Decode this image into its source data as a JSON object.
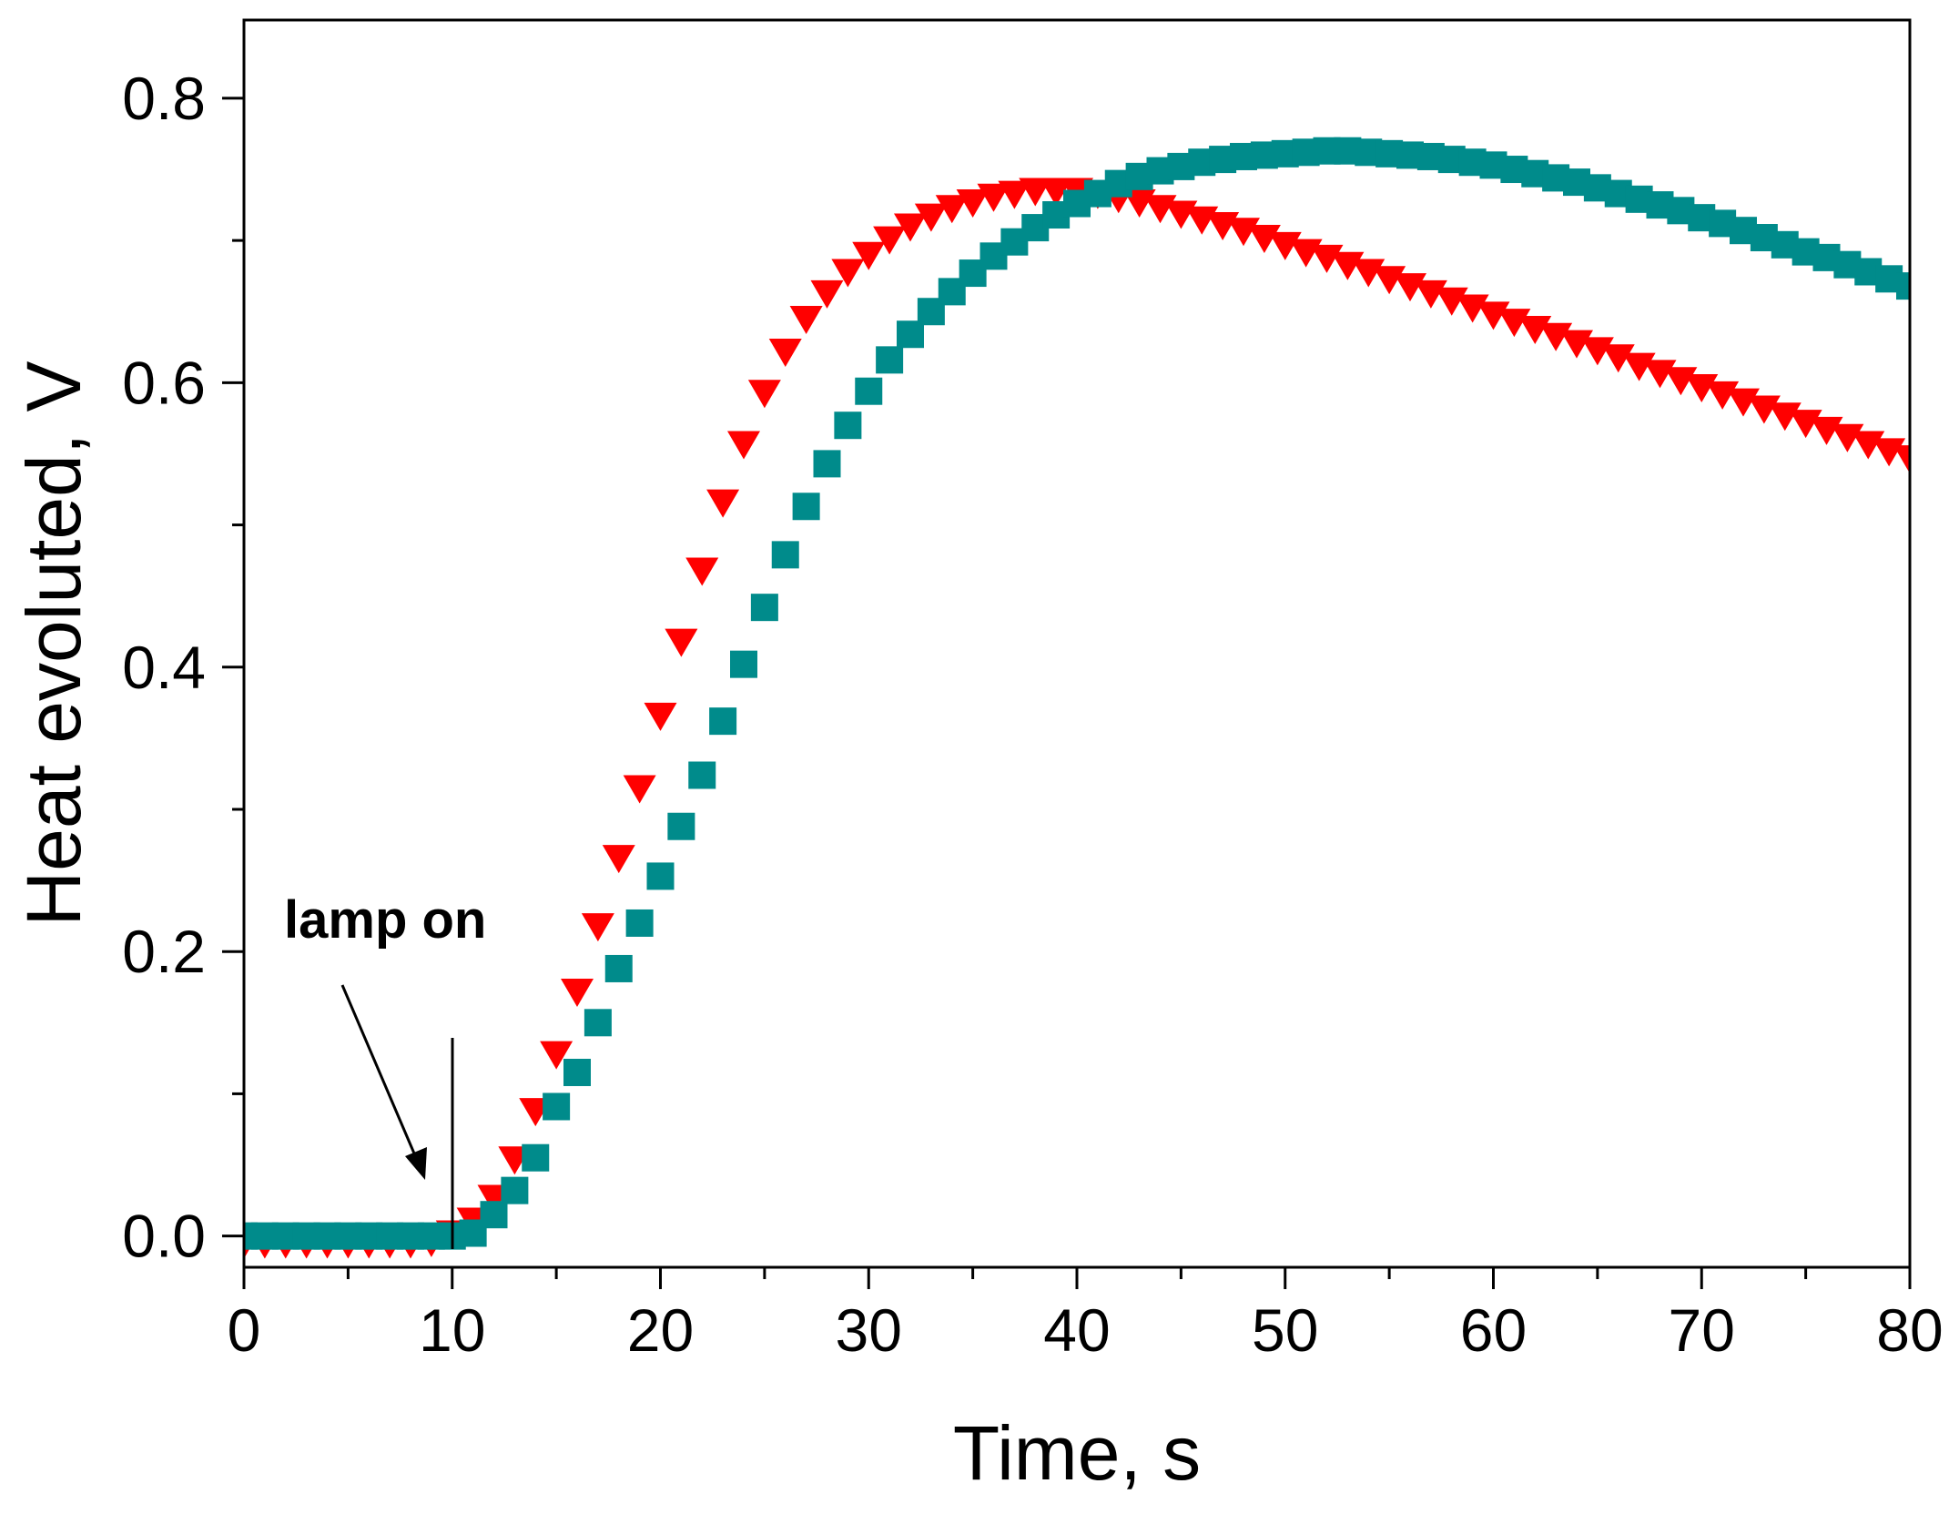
{
  "chart_data": {
    "type": "scatter",
    "title": "",
    "xlabel": "Time, s",
    "ylabel": "Heat evoluted, V",
    "xlim": [
      0,
      80
    ],
    "ylim": [
      -0.022,
      0.855
    ],
    "xticks": [
      0,
      10,
      20,
      30,
      40,
      50,
      60,
      70,
      80
    ],
    "xtick_labels": [
      "0",
      "10",
      "20",
      "30",
      "40",
      "50",
      "60",
      "70",
      "80"
    ],
    "yticks": [
      0.0,
      0.2,
      0.4,
      0.6,
      0.8
    ],
    "ytick_labels": [
      "0.0",
      "0.2",
      "0.4",
      "0.6",
      "0.8"
    ],
    "grid": false,
    "annotation": {
      "text": "lamp on",
      "points_to_x": 10
    },
    "series": [
      {
        "name": "triangles",
        "marker": "triangle-down",
        "color": "#ff0000",
        "x": [
          0,
          1,
          2,
          3,
          4,
          5,
          6,
          7,
          8,
          9,
          10,
          11,
          12,
          13,
          14,
          15,
          16,
          17,
          18,
          19,
          20,
          21,
          22,
          23,
          24,
          25,
          26,
          27,
          28,
          29,
          30,
          31,
          32,
          33,
          34,
          35,
          36,
          37,
          38,
          39,
          40,
          41,
          42,
          43,
          44,
          45,
          46,
          47,
          48,
          49,
          50,
          51,
          52,
          53,
          54,
          55,
          56,
          57,
          58,
          59,
          60,
          61,
          62,
          63,
          64,
          65,
          66,
          67,
          68,
          69,
          70,
          71,
          72,
          73,
          74,
          75,
          76,
          77,
          78,
          79,
          80
        ],
        "values": [
          -0.005,
          -0.005,
          -0.005,
          -0.005,
          -0.005,
          -0.005,
          -0.005,
          -0.005,
          -0.005,
          -0.004,
          0.002,
          0.011,
          0.027,
          0.054,
          0.088,
          0.128,
          0.172,
          0.218,
          0.266,
          0.315,
          0.366,
          0.418,
          0.468,
          0.516,
          0.557,
          0.593,
          0.622,
          0.645,
          0.663,
          0.678,
          0.69,
          0.701,
          0.71,
          0.717,
          0.723,
          0.727,
          0.731,
          0.733,
          0.735,
          0.735,
          0.735,
          0.733,
          0.73,
          0.727,
          0.723,
          0.719,
          0.715,
          0.711,
          0.707,
          0.702,
          0.697,
          0.692,
          0.688,
          0.683,
          0.678,
          0.673,
          0.668,
          0.663,
          0.658,
          0.653,
          0.648,
          0.643,
          0.638,
          0.633,
          0.628,
          0.623,
          0.618,
          0.612,
          0.607,
          0.602,
          0.597,
          0.592,
          0.587,
          0.582,
          0.577,
          0.572,
          0.567,
          0.562,
          0.557,
          0.552,
          0.547
        ]
      },
      {
        "name": "squares",
        "marker": "square",
        "color": "#008b8b",
        "x": [
          0,
          1,
          2,
          3,
          4,
          5,
          6,
          7,
          8,
          9,
          10,
          11,
          12,
          13,
          14,
          15,
          16,
          17,
          18,
          19,
          20,
          21,
          22,
          23,
          24,
          25,
          26,
          27,
          28,
          29,
          30,
          31,
          32,
          33,
          34,
          35,
          36,
          37,
          38,
          39,
          40,
          41,
          42,
          43,
          44,
          45,
          46,
          47,
          48,
          49,
          50,
          51,
          52,
          53,
          54,
          55,
          56,
          57,
          58,
          59,
          60,
          61,
          62,
          63,
          64,
          65,
          66,
          67,
          68,
          69,
          70,
          71,
          72,
          73,
          74,
          75,
          76,
          77,
          78,
          79,
          80
        ],
        "values": [
          0.0,
          0.0,
          0.0,
          0.0,
          0.0,
          0.0,
          0.0,
          0.0,
          0.0,
          0.0,
          0.0,
          0.002,
          0.015,
          0.032,
          0.055,
          0.091,
          0.115,
          0.15,
          0.188,
          0.22,
          0.253,
          0.288,
          0.324,
          0.362,
          0.402,
          0.442,
          0.479,
          0.513,
          0.543,
          0.57,
          0.594,
          0.616,
          0.634,
          0.65,
          0.664,
          0.677,
          0.689,
          0.699,
          0.709,
          0.718,
          0.726,
          0.733,
          0.74,
          0.745,
          0.749,
          0.752,
          0.755,
          0.757,
          0.759,
          0.76,
          0.761,
          0.762,
          0.763,
          0.763,
          0.762,
          0.761,
          0.76,
          0.759,
          0.757,
          0.755,
          0.753,
          0.75,
          0.747,
          0.744,
          0.741,
          0.737,
          0.733,
          0.729,
          0.725,
          0.721,
          0.716,
          0.712,
          0.707,
          0.702,
          0.697,
          0.692,
          0.688,
          0.683,
          0.678,
          0.673,
          0.668
        ]
      }
    ]
  }
}
